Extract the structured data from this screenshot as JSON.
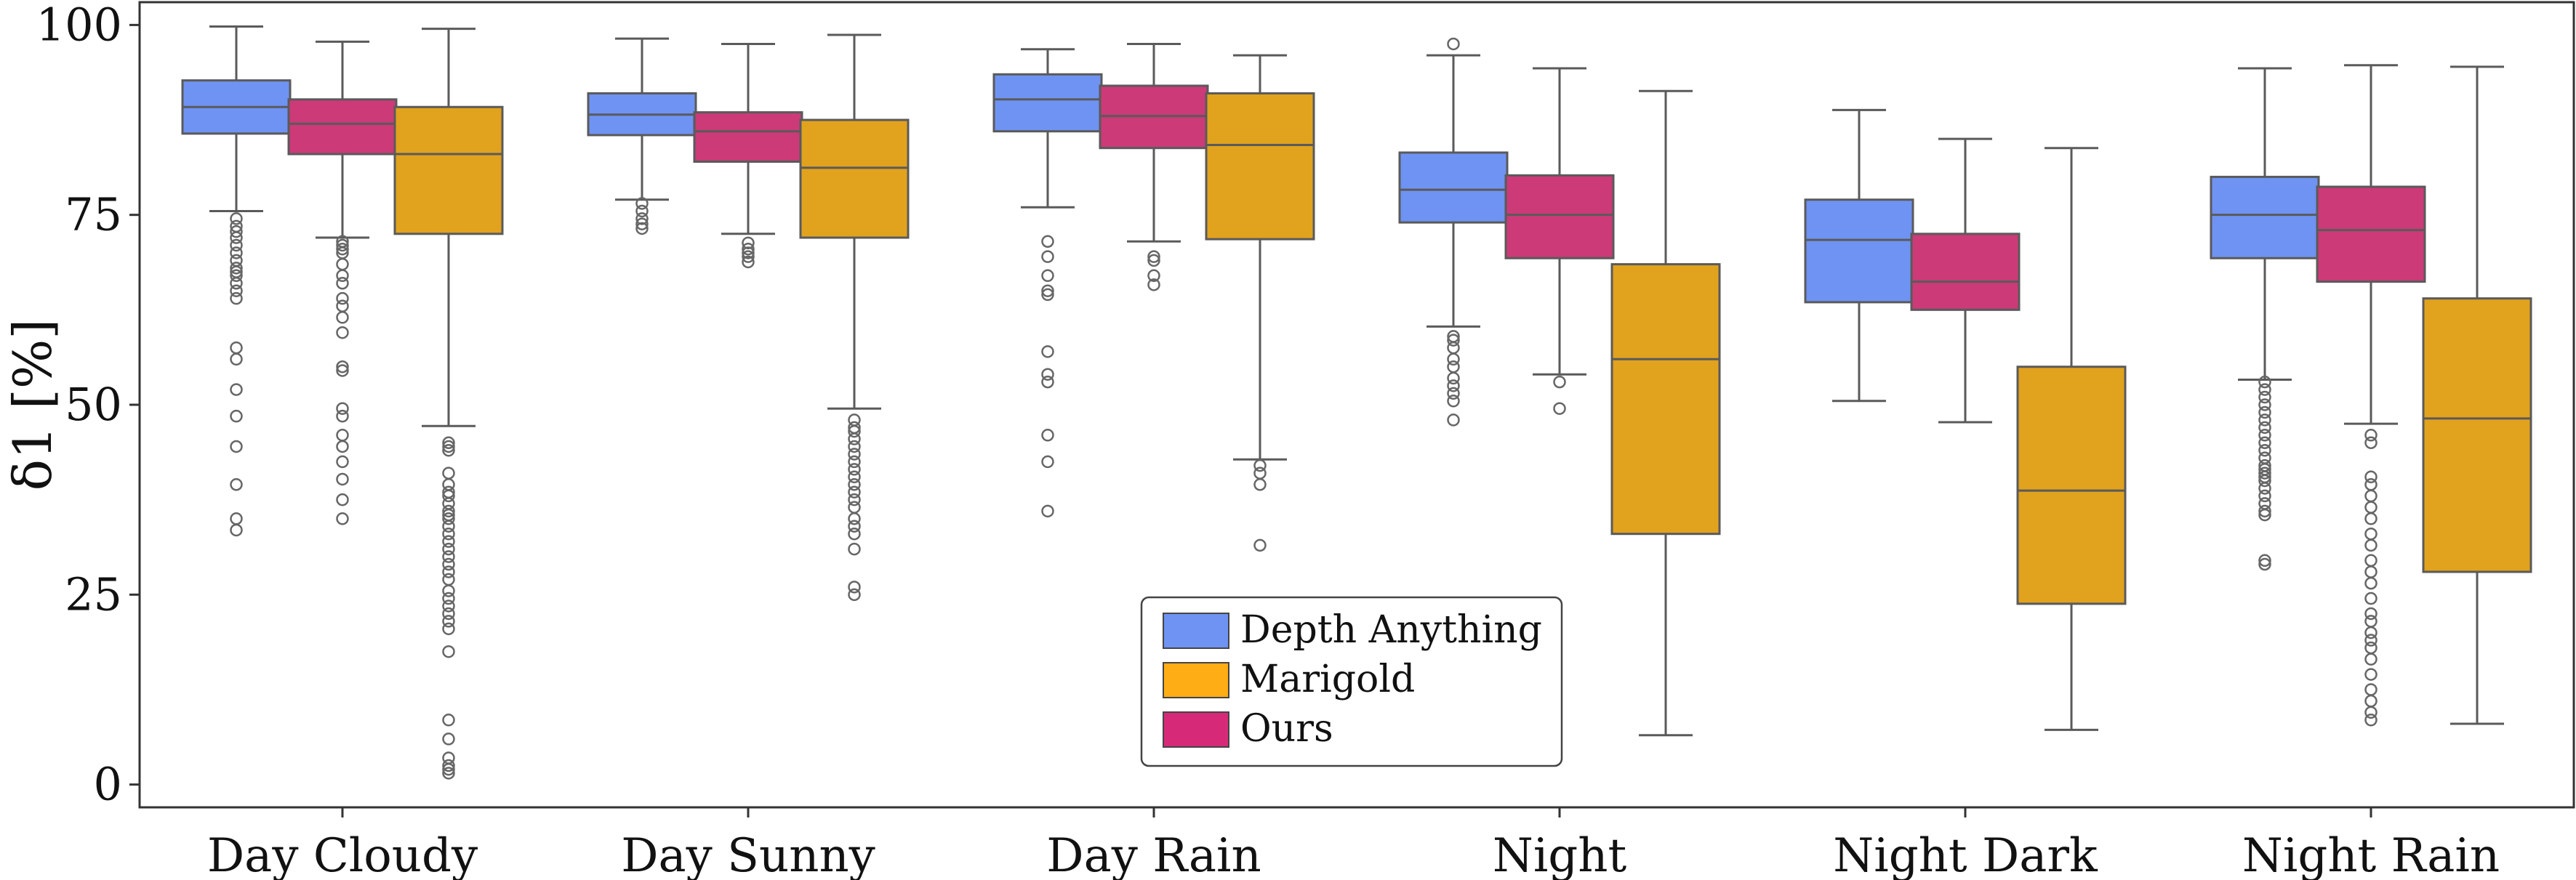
{
  "chart_data": {
    "type": "boxplot",
    "title": "",
    "ylabel": "δ1 [%]",
    "xlabel": "",
    "ylim": [
      -3,
      103
    ],
    "yticks": [
      0,
      25,
      50,
      75,
      100
    ],
    "ytick_labels": [
      "0",
      "25",
      "50",
      "75",
      "100"
    ],
    "grid": false,
    "legend_placement": "lower-center",
    "categories": [
      "Day Cloudy",
      "Day Sunny",
      "Day Rain",
      "Night",
      "Night Dark",
      "Night Rain"
    ],
    "series": [
      {
        "name": "Depth Anything",
        "color": "#6f93f2",
        "boxes": [
          {
            "whislo": 75.5,
            "q1": 85.7,
            "med": 89.2,
            "q3": 92.7,
            "whishi": 99.8,
            "fliers": [
              74.5,
              73.5,
              72.8,
              72,
              71,
              70,
              69,
              68,
              67.5,
              67,
              66,
              65,
              64,
              57.5,
              56,
              52,
              48.5,
              44.5,
              39.5,
              35,
              33.5
            ]
          },
          {
            "whislo": 77,
            "q1": 85.5,
            "med": 88.2,
            "q3": 91,
            "whishi": 98.2,
            "fliers": [
              76.5,
              75.5,
              74.5,
              73.8,
              73.2
            ]
          },
          {
            "whislo": 76,
            "q1": 86,
            "med": 90.2,
            "q3": 93.5,
            "whishi": 96.8,
            "fliers": [
              71.5,
              69.5,
              67,
              65,
              64.5,
              57,
              54,
              53,
              46,
              42.5,
              36
            ]
          },
          {
            "whislo": 60.3,
            "q1": 74,
            "med": 78.3,
            "q3": 83.2,
            "whishi": 96,
            "fliers": [
              97.5,
              59,
              58.5,
              57.5,
              56,
              55,
              53.5,
              52.5,
              51.5,
              50.5,
              48
            ]
          },
          {
            "whislo": 50.5,
            "q1": 63.5,
            "med": 71.7,
            "q3": 77,
            "whishi": 88.8,
            "fliers": []
          },
          {
            "whislo": 53.3,
            "q1": 69.3,
            "med": 75,
            "q3": 80,
            "whishi": 94.3,
            "fliers": [
              53,
              52,
              51,
              50,
              49,
              48,
              47,
              46,
              45,
              44,
              43,
              42,
              41.5,
              41,
              40.5,
              40,
              39,
              38,
              37,
              36,
              35.5,
              29.5,
              29
            ]
          }
        ]
      },
      {
        "name": "Ours",
        "color": "#cc3a78",
        "boxes": [
          {
            "whislo": 72,
            "q1": 83,
            "med": 87,
            "q3": 90.2,
            "whishi": 97.8,
            "fliers": [
              71.5,
              71,
              70.5,
              70,
              68.5,
              67,
              66,
              64,
              63,
              61.5,
              59.5,
              55,
              54.5,
              49.5,
              48.5,
              46,
              44.5,
              42.5,
              40.2,
              37.5,
              35
            ]
          },
          {
            "whislo": 72.5,
            "q1": 82,
            "med": 86,
            "q3": 88.5,
            "whishi": 97.5,
            "fliers": [
              71.3,
              70.5,
              70,
              69.5,
              68.8
            ]
          },
          {
            "whislo": 71.5,
            "q1": 83.8,
            "med": 88,
            "q3": 92,
            "whishi": 97.5,
            "fliers": [
              69.5,
              69,
              67,
              65.8
            ]
          },
          {
            "whislo": 54,
            "q1": 69.3,
            "med": 75,
            "q3": 80.2,
            "whishi": 94.3,
            "fliers": [
              53,
              49.5
            ]
          },
          {
            "whislo": 47.7,
            "q1": 62.5,
            "med": 66.2,
            "q3": 72.5,
            "whishi": 85,
            "fliers": []
          },
          {
            "whislo": 47.5,
            "q1": 66.2,
            "med": 73,
            "q3": 78.7,
            "whishi": 94.7,
            "fliers": [
              46,
              45,
              40.5,
              39.5,
              38,
              36.5,
              35,
              33,
              31.5,
              29.5,
              28,
              26.5,
              24.5,
              22.5,
              21.5,
              20,
              19,
              18,
              16.5,
              14.5,
              12.5,
              11,
              9.5,
              8.5
            ]
          }
        ]
      },
      {
        "name": "Marigold",
        "color": "#e1a21e",
        "boxes": [
          {
            "whislo": 47.2,
            "q1": 72.5,
            "med": 83,
            "q3": 89.2,
            "whishi": 99.5,
            "fliers": [
              45,
              44.5,
              44,
              41,
              39.5,
              38.5,
              38,
              37,
              36,
              35.5,
              35,
              34,
              33,
              32,
              31,
              30,
              29,
              28,
              27,
              25.5,
              24.5,
              23.5,
              22.5,
              21.5,
              20.5,
              17.5,
              8.5,
              6,
              3.5,
              2.5,
              2,
              1.5
            ]
          },
          {
            "whislo": 49.5,
            "q1": 72,
            "med": 81.2,
            "q3": 87.5,
            "whishi": 98.7,
            "fliers": [
              48,
              47,
              46.5,
              45.5,
              44.5,
              43.5,
              42.5,
              41.5,
              40.5,
              39.5,
              38.5,
              37.5,
              36.5,
              35,
              34,
              33,
              31,
              26,
              25
            ]
          },
          {
            "whislo": 42.8,
            "q1": 71.8,
            "med": 84.2,
            "q3": 91,
            "whishi": 96
          },
          {
            "whislo": 6.5,
            "q1": 33,
            "med": 56,
            "q3": 68.5,
            "whishi": 91.3,
            "fliers": []
          },
          {
            "whislo": 7.2,
            "q1": 23.8,
            "med": 38.7,
            "q3": 55,
            "whishi": 83.8,
            "fliers": []
          },
          {
            "whislo": 8,
            "q1": 28,
            "med": 48.2,
            "q3": 64,
            "whishi": 94.5,
            "fliers": []
          }
        ]
      }
    ],
    "legend": [
      {
        "name": "Depth Anything",
        "color": "#6f93f2"
      },
      {
        "name": "Marigold",
        "color": "#ffad14"
      },
      {
        "name": "Ours",
        "color": "#d62a79"
      }
    ],
    "extra_fliers": {
      "Day Rain": {
        "Marigold": [
          42,
          41,
          39.5,
          31.5
        ]
      }
    }
  }
}
